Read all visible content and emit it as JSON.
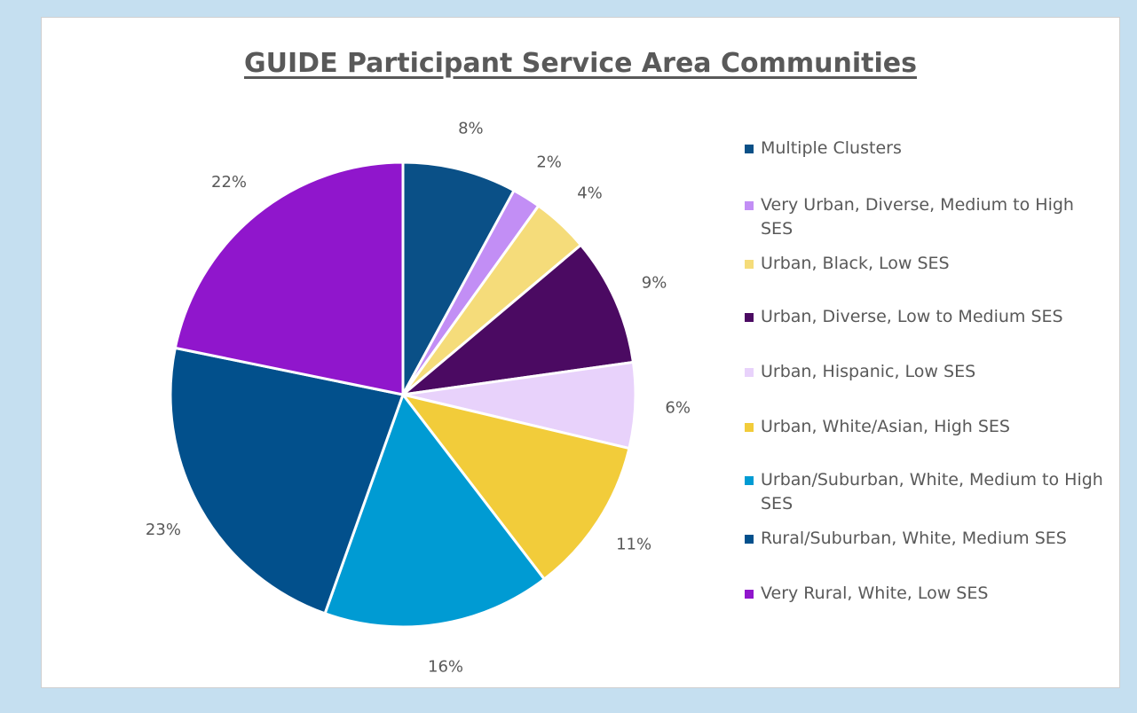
{
  "chart_data": {
    "type": "pie",
    "title": "GUIDE Participant Service Area Communities",
    "slices": [
      {
        "label": "Multiple Clusters",
        "value": 8,
        "display": "8%",
        "color": "#0a5087"
      },
      {
        "label": "Very Urban, Diverse, Medium to High SES",
        "value": 2,
        "display": "2%",
        "color": "#c28ef5"
      },
      {
        "label": "Urban, Black, Low SES",
        "value": 4,
        "display": "4%",
        "color": "#f5dc7a"
      },
      {
        "label": "Urban, Diverse, Low to Medium SES",
        "value": 9,
        "display": "9%",
        "color": "#4b0a62"
      },
      {
        "label": "Urban, Hispanic, Low SES",
        "value": 6,
        "display": "6%",
        "color": "#e8d2fb"
      },
      {
        "label": "Urban, White/Asian, High SES",
        "value": 11,
        "display": "11%",
        "color": "#f2cc3a"
      },
      {
        "label": "Urban/Suburban, White, Medium to High SES",
        "value": 16,
        "display": "16%",
        "color": "#009bd3"
      },
      {
        "label": "Rural/Suburban, White, Medium SES",
        "value": 23,
        "display": "23%",
        "color": "#02508c"
      },
      {
        "label": "Very Rural, White, Low SES",
        "value": 22,
        "display": "22%",
        "color": "#9016cc"
      }
    ],
    "legend_position": "right"
  }
}
